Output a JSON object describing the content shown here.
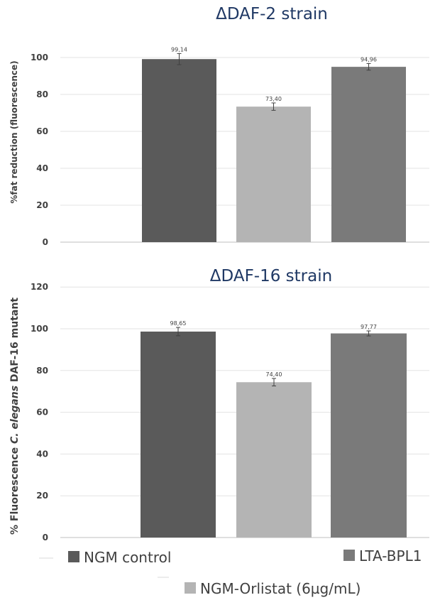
{
  "legend": [
    {
      "label": "NGM control",
      "color": "#5a5a5a"
    },
    {
      "label": "NGM-Orlistat (6µg/mL)",
      "color": "#b4b4b4"
    },
    {
      "label": "LTA-BPL1",
      "color": "#7a7a7a"
    }
  ],
  "chart_data": [
    {
      "type": "bar",
      "title": "ΔDAF-2 strain",
      "ylabel": "%fat reduction (fluorescence)",
      "ylim": [
        0,
        120
      ],
      "yticks": [
        0,
        20,
        40,
        60,
        80,
        100
      ],
      "grid": true,
      "categories": [
        "NGM control",
        "NGM-Orlistat (6µg/mL)",
        "LTA-BPL1"
      ],
      "values": [
        99.14,
        73.4,
        94.96
      ],
      "value_labels": [
        "99,14",
        "73,40",
        "94,96"
      ],
      "errors": [
        3.0,
        2.0,
        1.8
      ],
      "colors": [
        "#5a5a5a",
        "#b4b4b4",
        "#7a7a7a"
      ]
    },
    {
      "type": "bar",
      "title": "ΔDAF-16 strain",
      "ylabel_parts": [
        "% Fluorescence ",
        "C. elegans",
        " DAF-16 mutant"
      ],
      "ylim": [
        0,
        120
      ],
      "yticks": [
        0,
        20,
        40,
        60,
        80,
        100,
        120
      ],
      "grid": true,
      "categories": [
        "NGM control",
        "NGM-Orlistat (6µg/mL)",
        "LTA-BPL1"
      ],
      "values": [
        98.65,
        74.4,
        97.77
      ],
      "value_labels": [
        "98,65",
        "74,40",
        "97,77"
      ],
      "errors": [
        2.0,
        1.8,
        1.2
      ],
      "colors": [
        "#5a5a5a",
        "#b4b4b4",
        "#7a7a7a"
      ]
    }
  ]
}
